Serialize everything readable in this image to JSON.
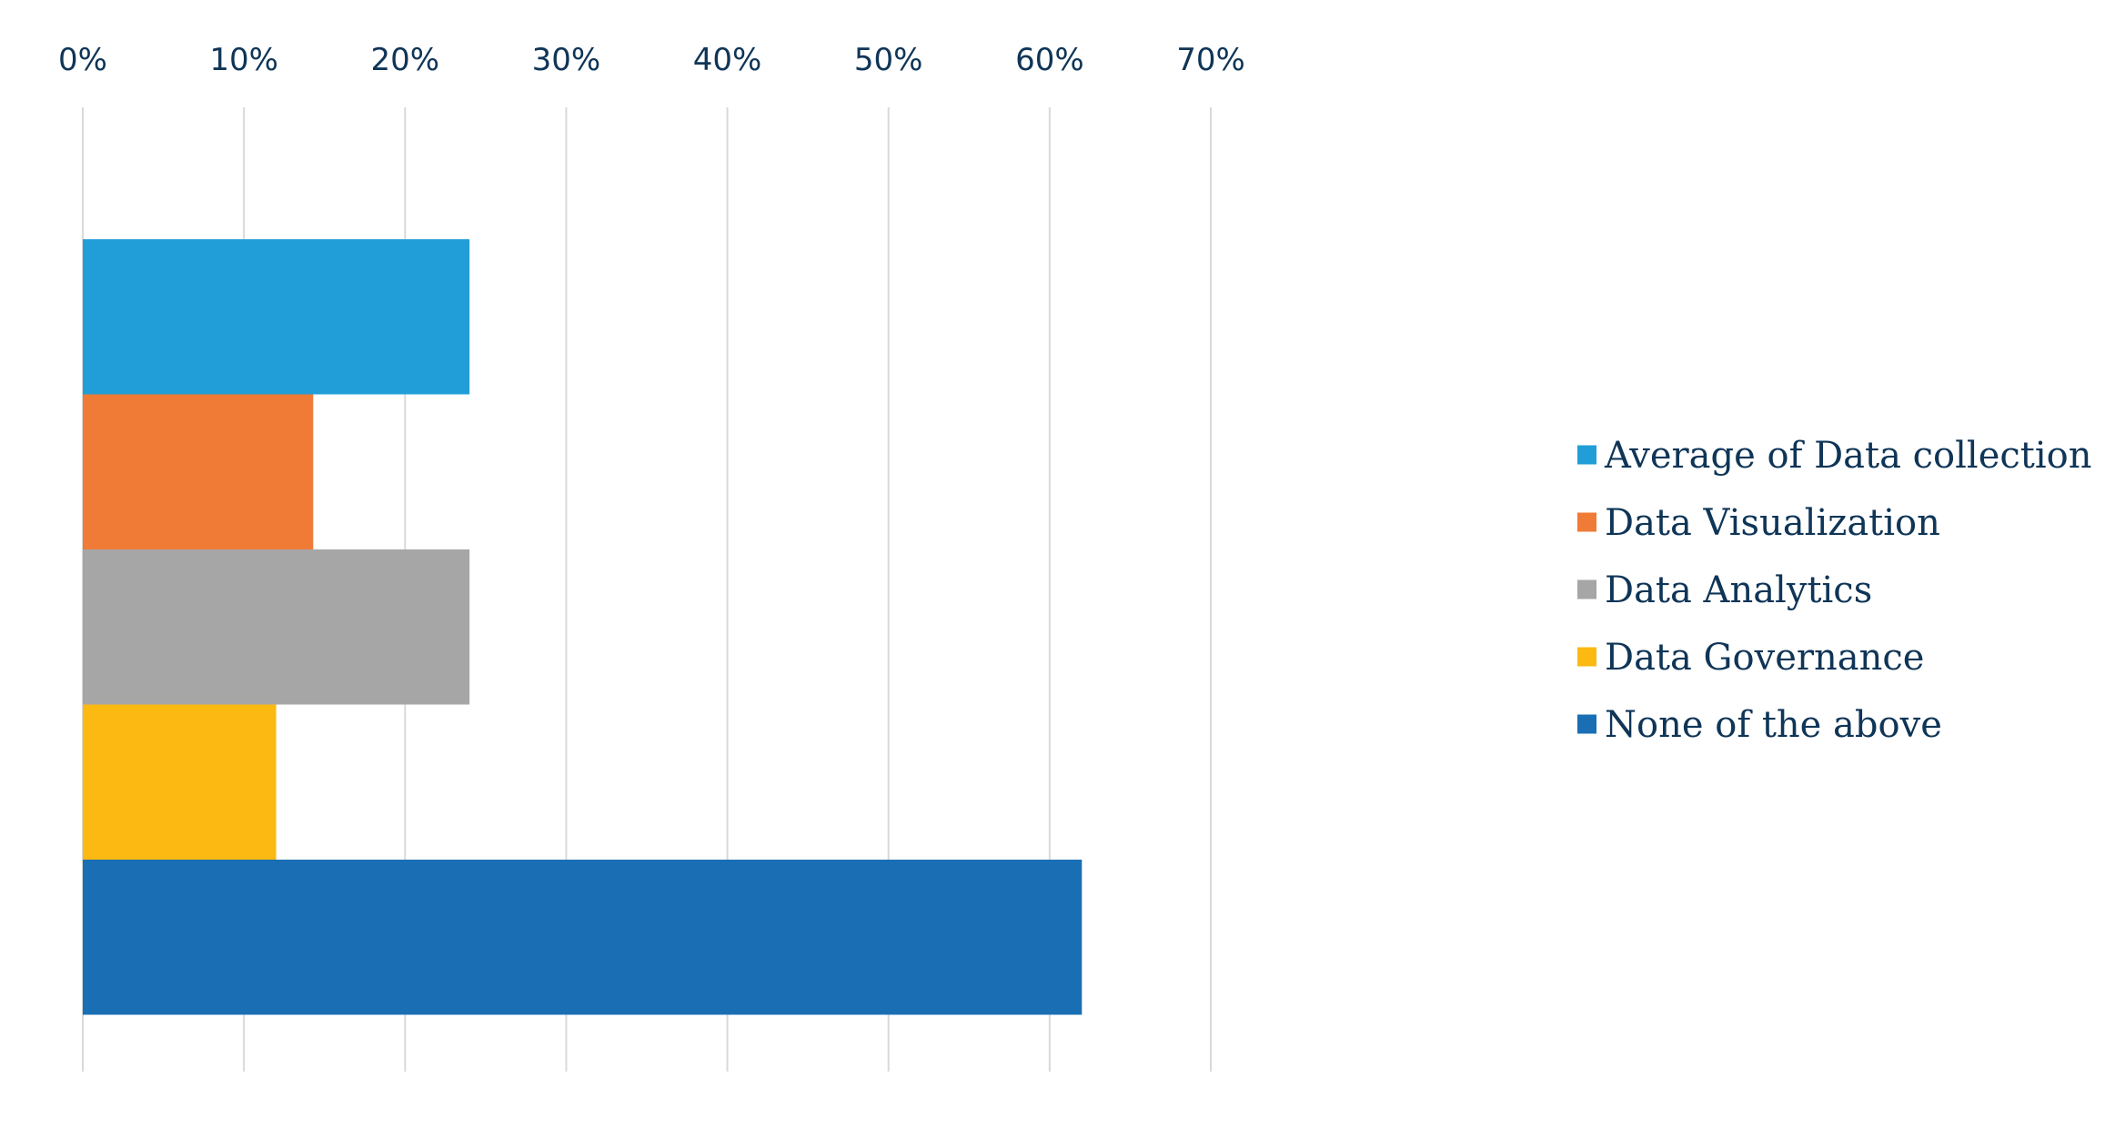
{
  "chart_data": {
    "type": "bar",
    "orientation": "horizontal",
    "title": "",
    "xlabel": "",
    "ylabel": "",
    "xlim": [
      0,
      70
    ],
    "x_ticks": [
      "0%",
      "10%",
      "20%",
      "30%",
      "40%",
      "50%",
      "60%",
      "70%"
    ],
    "x_tick_values": [
      0,
      10,
      20,
      30,
      40,
      50,
      60,
      70
    ],
    "grid": "vertical",
    "legend_position": "right",
    "series": [
      {
        "name": "Average of Data collection",
        "value": 24,
        "color": "#219ed8"
      },
      {
        "name": "Data Visualization",
        "value": 14.3,
        "color": "#ef7b36"
      },
      {
        "name": "Data Analytics",
        "value": 24,
        "color": "#a6a6a6"
      },
      {
        "name": "Data Governance",
        "value": 12,
        "color": "#fbb911"
      },
      {
        "name": "None of the above",
        "value": 62,
        "color": "#1a6fb4"
      }
    ]
  },
  "colors": {
    "gridline": "#d9d9d9",
    "text": "#0f3557"
  }
}
